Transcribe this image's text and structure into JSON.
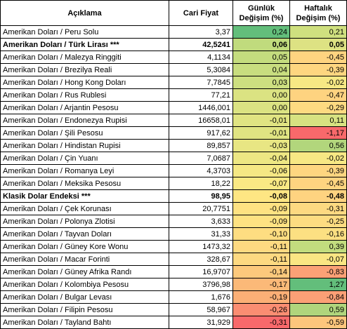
{
  "headers": {
    "name": "Açıklama",
    "price": "Cari Fiyat",
    "daily": [
      "Günlük",
      "Değişim (%)"
    ],
    "weekly": [
      "Haftalık",
      "Değişim (%)"
    ]
  },
  "rows": [
    {
      "name": "Amerikan Doları / Peru Solu",
      "price": "3,37",
      "daily": "0,24",
      "weekly": "0,21",
      "bold": false,
      "daily_color": "#63be7b",
      "weekly_color": "#cfe07f"
    },
    {
      "name": "Amerikan Doları / Türk Lirası ***",
      "price": "42,5241",
      "daily": "0,06",
      "weekly": "0,05",
      "bold": true,
      "daily_color": "#c0db7d",
      "weekly_color": "#dde283"
    },
    {
      "name": "Amerikan Doları / Malezya Ringgiti",
      "price": "4,1134",
      "daily": "0,05",
      "weekly": "-0,45",
      "bold": false,
      "daily_color": "#c4dc7e",
      "weekly_color": "#fed480"
    },
    {
      "name": "Amerikan Doları / Brezilya Reali",
      "price": "5,3084",
      "daily": "0,04",
      "weekly": "-0,39",
      "bold": false,
      "daily_color": "#c8dd7f",
      "weekly_color": "#fed680"
    },
    {
      "name": "Amerikan Doları / Hong Kong Doları",
      "price": "7,7845",
      "daily": "0,03",
      "weekly": "-0,02",
      "bold": false,
      "daily_color": "#cddf80",
      "weekly_color": "#f7e884"
    },
    {
      "name": "Amerikan Doları / Rus Rublesi",
      "price": "77,21",
      "daily": "0,00",
      "weekly": "-0,47",
      "bold": false,
      "daily_color": "#dbe382",
      "weekly_color": "#fed380"
    },
    {
      "name": "Amerikan Doları / Arjantin Pesosu",
      "price": "1446,001",
      "daily": "0,00",
      "weekly": "-0,29",
      "bold": false,
      "daily_color": "#dbe382",
      "weekly_color": "#fdda81"
    },
    {
      "name": "Amerikan Doları / Endonezya Rupisi",
      "price": "16658,01",
      "daily": "-0,01",
      "weekly": "0,11",
      "bold": false,
      "daily_color": "#e0e482",
      "weekly_color": "#d7e281"
    },
    {
      "name": "Amerikan Doları / Şili Pesosu",
      "price": "917,62",
      "daily": "-0,01",
      "weekly": "-1,17",
      "bold": false,
      "daily_color": "#e0e482",
      "weekly_color": "#f8696b"
    },
    {
      "name": "Amerikan Doları / Hindistan Rupisi",
      "price": "89,857",
      "daily": "-0,03",
      "weekly": "0,56",
      "bold": false,
      "daily_color": "#e8e683",
      "weekly_color": "#b2d67c"
    },
    {
      "name": "Amerikan Doları / Çin Yuanı",
      "price": "7,0687",
      "daily": "-0,04",
      "weekly": "-0,02",
      "bold": false,
      "daily_color": "#ede783",
      "weekly_color": "#f7e884"
    },
    {
      "name": "Amerikan Doları / Romanya Leyi",
      "price": "4,3703",
      "daily": "-0,06",
      "weekly": "-0,39",
      "bold": false,
      "daily_color": "#f5e884",
      "weekly_color": "#fed680"
    },
    {
      "name": "Amerikan Doları / Meksika Pesosu",
      "price": "18,22",
      "daily": "-0,07",
      "weekly": "-0,45",
      "bold": false,
      "daily_color": "#fae984",
      "weekly_color": "#fed480"
    },
    {
      "name": "Klasik Dolar Endeksi ***",
      "price": "98,95",
      "daily": "-0,08",
      "weekly": "-0,48",
      "bold": true,
      "daily_color": "#fee683",
      "weekly_color": "#fed380"
    },
    {
      "name": "Amerikan Doları / Çek Korunası",
      "price": "20,7751",
      "daily": "-0,09",
      "weekly": "-0,31",
      "bold": false,
      "daily_color": "#fee282",
      "weekly_color": "#fdd981"
    },
    {
      "name": "Amerikan Doları / Polonya Zlotisi",
      "price": "3,633",
      "daily": "-0,09",
      "weekly": "-0,25",
      "bold": false,
      "daily_color": "#fee282",
      "weekly_color": "#fddc81"
    },
    {
      "name": "Amerikan Doları / Tayvan Doları",
      "price": "31,33",
      "daily": "-0,10",
      "weekly": "-0,16",
      "bold": false,
      "daily_color": "#fedd81",
      "weekly_color": "#fce082"
    },
    {
      "name": "Amerikan Doları / Güney Kore Wonu",
      "price": "1473,32",
      "daily": "-0,11",
      "weekly": "0,39",
      "bold": false,
      "daily_color": "#fdd981",
      "weekly_color": "#c2dc7e"
    },
    {
      "name": "Amerikan Doları / Macar Forinti",
      "price": "328,67",
      "daily": "-0,11",
      "weekly": "-0,07",
      "bold": false,
      "daily_color": "#fdd981",
      "weekly_color": "#fae683"
    },
    {
      "name": "Amerikan Doları / Güney Afrika Randı",
      "price": "16,9707",
      "daily": "-0,14",
      "weekly": "-0,83",
      "bold": false,
      "daily_color": "#fcc97c",
      "weekly_color": "#fba176"
    },
    {
      "name": "Amerikan Doları / Kolombiya Pesosu",
      "price": "3796,98",
      "daily": "-0,17",
      "weekly": "1,27",
      "bold": false,
      "daily_color": "#fbb978",
      "weekly_color": "#63be7b"
    },
    {
      "name": "Amerikan Doları / Bulgar Levası",
      "price": "1,676",
      "daily": "-0,19",
      "weekly": "-0,84",
      "bold": false,
      "daily_color": "#fbaf76",
      "weekly_color": "#fba076"
    },
    {
      "name": "Amerikan Doları / Filipin Pesosu",
      "price": "58,967",
      "daily": "-0,26",
      "weekly": "0,59",
      "bold": false,
      "daily_color": "#fa8d72",
      "weekly_color": "#b0d57c"
    },
    {
      "name": "Amerikan Doları / Tayland Bahtı",
      "price": "31,929",
      "daily": "-0,31",
      "weekly": "-0,59",
      "bold": false,
      "daily_color": "#f8696b",
      "weekly_color": "#fdc67c"
    }
  ]
}
